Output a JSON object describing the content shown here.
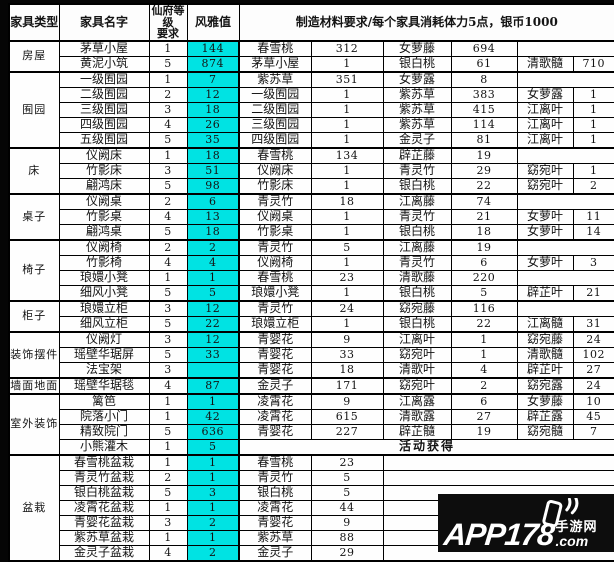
{
  "header": {
    "col_type": "家具类型",
    "col_name": "家具名字",
    "col_level": "仙府等级\n要求",
    "col_value": "风雅值",
    "col_materials": "制造材料要求/每个家具消耗体力5点，银币1000"
  },
  "colors": {
    "value_cell_bg": "#00e3e3",
    "border": "#000000",
    "watermark_bg": "#0d0d0d"
  },
  "special": {
    "activity_label": "活动获得"
  },
  "watermark": {
    "brand": "APP178",
    "site_name": "手游网",
    "domain_suffix": ".com",
    "phone_icon": "phone-with-signal"
  },
  "rows": [
    {
      "group": "房屋",
      "span": 2,
      "name": "茅草小屋",
      "level": "1",
      "value": "144",
      "mats": [
        [
          "春雪桃",
          "312"
        ],
        [
          "女萝藤",
          "694"
        ]
      ]
    },
    {
      "name": "黄泥小筑",
      "level": "5",
      "value": "874",
      "mats": [
        [
          "茅草小屋",
          "1"
        ],
        [
          "银白桃",
          "61"
        ],
        [
          "清歌髓",
          "710"
        ]
      ]
    },
    {
      "group": "囿园",
      "span": 5,
      "name": "一级囿园",
      "level": "1",
      "value": "7",
      "mats": [
        [
          "紫苏草",
          "351"
        ],
        [
          "女萝露",
          "8"
        ]
      ]
    },
    {
      "name": "二级囿园",
      "level": "2",
      "value": "12",
      "mats": [
        [
          "一级囿园",
          "1"
        ],
        [
          "紫苏草",
          "383"
        ],
        [
          "女萝露",
          "1"
        ]
      ]
    },
    {
      "name": "三级囿园",
      "level": "3",
      "value": "18",
      "mats": [
        [
          "二级囿园",
          "1"
        ],
        [
          "紫苏草",
          "415"
        ],
        [
          "江离叶",
          "1"
        ]
      ]
    },
    {
      "name": "四级囿园",
      "level": "4",
      "value": "26",
      "mats": [
        [
          "三级囿园",
          "1"
        ],
        [
          "紫苏草",
          "114"
        ],
        [
          "江离叶",
          "1"
        ]
      ]
    },
    {
      "name": "五级囿园",
      "level": "5",
      "value": "35",
      "mats": [
        [
          "四级囿园",
          "1"
        ],
        [
          "金灵子",
          "81"
        ],
        [
          "江离叶",
          "1"
        ]
      ]
    },
    {
      "group": "床",
      "span": 3,
      "name": "仪阙床",
      "level": "1",
      "value": "18",
      "mats": [
        [
          "春雪桃",
          "134"
        ],
        [
          "辟芷藤",
          "19"
        ]
      ]
    },
    {
      "name": "竹影床",
      "level": "3",
      "value": "51",
      "mats": [
        [
          "仪阙床",
          "1"
        ],
        [
          "青灵竹",
          "29"
        ],
        [
          "窈宛叶",
          "1"
        ]
      ]
    },
    {
      "name": "翩鸿床",
      "level": "5",
      "value": "98",
      "mats": [
        [
          "竹影床",
          "1"
        ],
        [
          "银白桃",
          "22"
        ],
        [
          "窈宛叶",
          "2"
        ]
      ]
    },
    {
      "group": "桌子",
      "span": 3,
      "name": "仪阙桌",
      "level": "2",
      "value": "6",
      "mats": [
        [
          "青灵竹",
          "18"
        ],
        [
          "江离藤",
          "74"
        ]
      ]
    },
    {
      "name": "竹影桌",
      "level": "4",
      "value": "13",
      "mats": [
        [
          "仪阙桌",
          "1"
        ],
        [
          "青灵竹",
          "21"
        ],
        [
          "女萝叶",
          "11"
        ]
      ]
    },
    {
      "name": "翩鸿桌",
      "level": "5",
      "value": "18",
      "mats": [
        [
          "竹影桌",
          "1"
        ],
        [
          "银白桃",
          "18"
        ],
        [
          "女萝叶",
          "14"
        ]
      ]
    },
    {
      "group": "椅子",
      "span": 4,
      "name": "仪阙椅",
      "level": "2",
      "value": "2",
      "mats": [
        [
          "青灵竹",
          "5"
        ],
        [
          "江离藤",
          "19"
        ]
      ]
    },
    {
      "name": "竹影椅",
      "level": "4",
      "value": "4",
      "mats": [
        [
          "仪阙椅",
          "1"
        ],
        [
          "青灵竹",
          "6"
        ],
        [
          "女萝叶",
          "3"
        ]
      ]
    },
    {
      "name": "琅嬛小凳",
      "level": "1",
      "value": "1",
      "mats": [
        [
          "春雪桃",
          "23"
        ],
        [
          "清歌藤",
          "220"
        ]
      ]
    },
    {
      "name": "细风小凳",
      "level": "5",
      "value": "5",
      "mats": [
        [
          "琅嬛小凳",
          "1"
        ],
        [
          "银白桃",
          "5"
        ],
        [
          "辟芷叶",
          "21"
        ]
      ]
    },
    {
      "group": "柜子",
      "span": 2,
      "name": "琅嬛立柜",
      "level": "3",
      "value": "12",
      "mats": [
        [
          "青灵竹",
          "24"
        ],
        [
          "窈宛藤",
          "116"
        ]
      ]
    },
    {
      "name": "细风立柜",
      "level": "5",
      "value": "22",
      "mats": [
        [
          "琅嬛立柜",
          "1"
        ],
        [
          "银白桃",
          "22"
        ],
        [
          "江离髓",
          "31"
        ]
      ]
    },
    {
      "group": "装饰摆件",
      "span": 3,
      "name": "仪阙灯",
      "level": "3",
      "value": "12",
      "mats": [
        [
          "青婴花",
          "9"
        ],
        [
          "江离叶",
          "1"
        ],
        [
          "窈宛藤",
          "24"
        ]
      ]
    },
    {
      "name": "瑶壁华琚屏",
      "level": "5",
      "value": "33",
      "mats": [
        [
          "青婴花",
          "33"
        ],
        [
          "窈宛叶",
          "1"
        ],
        [
          "清歌髓",
          "102"
        ]
      ]
    },
    {
      "name": "法宝架",
      "level": "3",
      "value": "",
      "mats": [
        [
          "青婴花",
          "18"
        ],
        [
          "清歌叶",
          "4"
        ],
        [
          "辟芷叶",
          "27"
        ]
      ]
    },
    {
      "group": "墙面地面",
      "span": 1,
      "name": "瑶壁华琚毯",
      "level": "4",
      "value": "87",
      "mats": [
        [
          "金灵子",
          "171"
        ],
        [
          "窈宛叶",
          "2"
        ],
        [
          "窈宛露",
          "24"
        ]
      ]
    },
    {
      "group": "室外装饰",
      "span": 4,
      "name": "篱笆",
      "level": "1",
      "value": "1",
      "mats": [
        [
          "凌霄花",
          "9"
        ],
        [
          "江离露",
          "6"
        ],
        [
          "女萝藤",
          "10"
        ]
      ]
    },
    {
      "name": "院落小门",
      "level": "1",
      "value": "42",
      "mats": [
        [
          "凌霄花",
          "615"
        ],
        [
          "清歌露",
          "27"
        ],
        [
          "辟芷露",
          "45"
        ]
      ]
    },
    {
      "name": "精致院门",
      "level": "5",
      "value": "636",
      "mats": [
        [
          "青婴花",
          "227"
        ],
        [
          "辟芷髓",
          "19"
        ],
        [
          "窈宛髓",
          "7"
        ]
      ]
    },
    {
      "name": "小熊灌木",
      "level": "1",
      "value": "5",
      "activity": true
    },
    {
      "group": "盆栽",
      "span": 7,
      "name": "春雪桃盆栽",
      "level": "1",
      "value": "1",
      "mats": [
        [
          "春雪桃",
          "23"
        ]
      ]
    },
    {
      "name": "青灵竹盆栽",
      "level": "2",
      "value": "1",
      "mats": [
        [
          "青灵竹",
          "5"
        ]
      ]
    },
    {
      "name": "银白桃盆栽",
      "level": "5",
      "value": "3",
      "mats": [
        [
          "银白桃",
          "5"
        ]
      ]
    },
    {
      "name": "凌霄花盆栽",
      "level": "1",
      "value": "1",
      "mats": [
        [
          "凌霄花",
          "44"
        ]
      ]
    },
    {
      "name": "青婴花盆栽",
      "level": "3",
      "value": "2",
      "mats": [
        [
          "青婴花",
          "9"
        ]
      ]
    },
    {
      "name": "紫苏草盆栽",
      "level": "1",
      "value": "1",
      "mats": [
        [
          "紫苏草",
          "88"
        ]
      ]
    },
    {
      "name": "金灵子盆栽",
      "level": "4",
      "value": "2",
      "mats": [
        [
          "金灵子",
          "29"
        ]
      ]
    }
  ]
}
